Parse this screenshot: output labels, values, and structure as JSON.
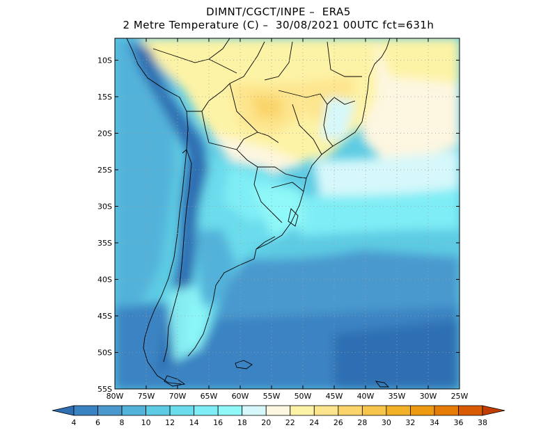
{
  "title_line1": "DIMNT/CGCT/INPE –  ERA5",
  "title_line2": "2 Metre Temperature (C) –  30/08/2021 00UTC fct=631h",
  "map": {
    "lon_range": [
      -80,
      -25
    ],
    "lat_range": [
      -55,
      -7
    ],
    "lat_ticks": [
      "10S",
      "15S",
      "20S",
      "25S",
      "30S",
      "35S",
      "40S",
      "45S",
      "50S",
      "55S"
    ],
    "lon_ticks": [
      "80W",
      "75W",
      "70W",
      "65W",
      "60W",
      "55W",
      "50W",
      "45W",
      "40W",
      "35W",
      "30W",
      "25W"
    ],
    "grid": true
  },
  "colorbar": {
    "labels": [
      "4",
      "6",
      "8",
      "10",
      "12",
      "14",
      "16",
      "18",
      "20",
      "22",
      "24",
      "26",
      "28",
      "30",
      "32",
      "34",
      "36",
      "38"
    ],
    "colors": [
      "#2f6eb2",
      "#3a83c2",
      "#4a99ce",
      "#52b2da",
      "#5dcbe3",
      "#6adcec",
      "#7fedf5",
      "#8ff8f8",
      "#d6f8fa",
      "#fdf6e0",
      "#fdf3a6",
      "#fde58e",
      "#fbd56c",
      "#f7c44c",
      "#f2b126",
      "#ed9a10",
      "#e67b05",
      "#d85a02",
      "#c13d01"
    ]
  }
}
